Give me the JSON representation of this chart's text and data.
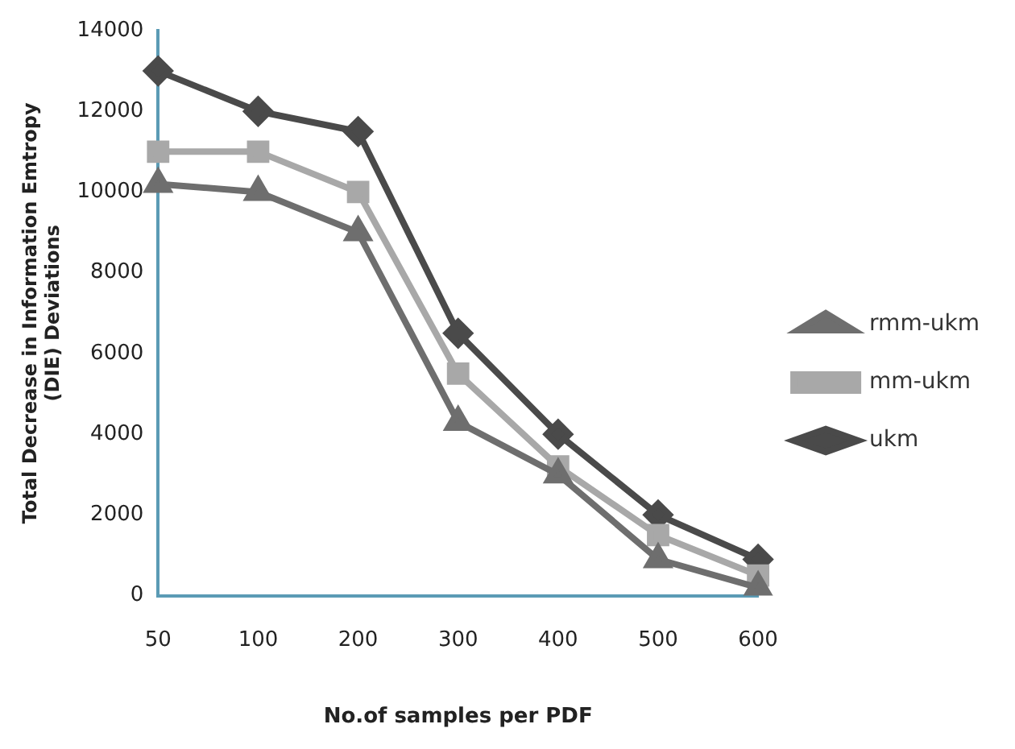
{
  "chart_data": {
    "type": "line",
    "xlabel": "No.of samples per PDF",
    "ylabel": "Total Decrease in Information Emtropy\n(DIE) Deviations",
    "categories": [
      "50",
      "100",
      "200",
      "300",
      "400",
      "500",
      "600"
    ],
    "series": [
      {
        "name": "ukm",
        "color": "#4a4a4a",
        "marker": "diamond",
        "values": [
          13000,
          12000,
          11500,
          6500,
          4000,
          2000,
          900
        ]
      },
      {
        "name": "mm-ukm",
        "color": "#a8a8a8",
        "marker": "square",
        "values": [
          11000,
          11000,
          10000,
          5500,
          3200,
          1500,
          500
        ]
      },
      {
        "name": "rmm-ukm",
        "color": "#6e6e6e",
        "marker": "triangle",
        "values": [
          10200,
          10000,
          9000,
          4300,
          3000,
          900,
          200
        ]
      }
    ],
    "ylim": [
      0,
      14000
    ],
    "yticks": [
      0,
      2000,
      4000,
      6000,
      8000,
      10000,
      12000,
      14000
    ],
    "grid": false,
    "legend": "right",
    "line_style": "solid"
  }
}
